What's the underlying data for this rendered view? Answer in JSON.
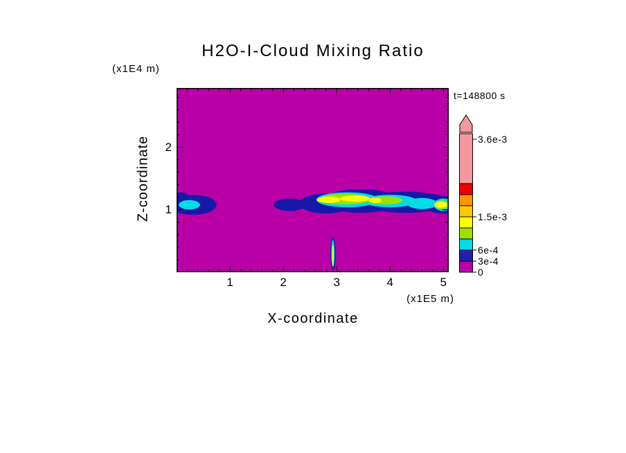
{
  "figure": {
    "background_color": "#ffffff"
  },
  "chart_data": {
    "type": "heatmap",
    "title": "H2O-I-Cloud Mixing Ratio",
    "time_label": "t=148800 s",
    "xlabel": "X-coordinate",
    "x_unit_label": "(x1E5 m)",
    "ylabel": "Z-coordinate",
    "y_unit_label": "(x1E4 m)",
    "xlim": [
      0,
      5.1
    ],
    "ylim": [
      0,
      2.95
    ],
    "x_major_ticks": [
      1,
      2,
      3,
      4,
      5
    ],
    "y_major_ticks": [
      1,
      2
    ],
    "x_minor_step": 0.2,
    "y_minor_step": 0.2,
    "grid": false,
    "field_background_color": "#b800a6",
    "palette": {
      "background": "#b800a6",
      "navy": "#1818a8",
      "cyan": "#00dce6",
      "yellow_green": "#a0e000",
      "yellow": "#ffff00",
      "gold": "#ffc800",
      "orange": "#ff9600",
      "red": "#f00000",
      "pink": "#f2989e"
    },
    "colorbar": {
      "position": "right",
      "arrow_color": "#f2989e",
      "labels": [
        {
          "text": "3.6e-3",
          "value": 0.0036
        },
        {
          "text": "1.5e-3",
          "value": 0.0015
        },
        {
          "text": "6e-4",
          "value": 0.0006
        },
        {
          "text": "3e-4",
          "value": 0.0003
        },
        {
          "text": "0",
          "value": 0
        }
      ],
      "segments_bottom_to_top": [
        {
          "value_range": [
            0,
            0.0003
          ],
          "color": "#b800a6"
        },
        {
          "value_range": [
            0.0003,
            0.0006
          ],
          "color": "#2020b0"
        },
        {
          "value_range": [
            0.0006,
            0.0009
          ],
          "color": "#00dce6"
        },
        {
          "value_range": [
            0.0009,
            0.0012
          ],
          "color": "#a0e000"
        },
        {
          "value_range": [
            0.0012,
            0.0015
          ],
          "color": "#ffff00"
        },
        {
          "value_range": [
            0.0015,
            0.0018
          ],
          "color": "#ffc800"
        },
        {
          "value_range": [
            0.0018,
            0.0021
          ],
          "color": "#ff9600"
        },
        {
          "value_range": [
            0.0021,
            0.0024
          ],
          "color": "#f00000"
        },
        {
          "value_range": [
            0.0024,
            0.00375
          ],
          "color": "#f2989e"
        }
      ]
    },
    "cloud_features": [
      {
        "name": "left-cloud-band",
        "x_range": [
          0,
          0.78
        ],
        "z_range": [
          0.95,
          1.28
        ],
        "max_level_color": "cyan"
      },
      {
        "name": "main-cloud-band",
        "x_range": [
          1.82,
          5.1
        ],
        "z_range": [
          0.9,
          1.36
        ],
        "max_level_color": "yellow"
      },
      {
        "name": "low-thin-plume",
        "x_range": [
          2.88,
          2.98
        ],
        "z_range": [
          0.05,
          0.56
        ],
        "max_level_color": "yellow"
      }
    ],
    "cloud_layers": [
      {
        "color": "#1818a8",
        "ellipses": [
          [
            0.3,
            1.08,
            0.45,
            0.16
          ],
          [
            0.08,
            1.16,
            0.18,
            0.12
          ],
          [
            2.12,
            1.08,
            0.3,
            0.1
          ],
          [
            2.8,
            1.1,
            0.5,
            0.16
          ],
          [
            3.45,
            1.14,
            0.72,
            0.19
          ],
          [
            4.3,
            1.12,
            0.8,
            0.17
          ],
          [
            4.97,
            1.08,
            0.3,
            0.14
          ],
          [
            2.93,
            0.3,
            0.05,
            0.26
          ]
        ]
      },
      {
        "color": "#00dce6",
        "ellipses": [
          [
            0.24,
            1.08,
            0.2,
            0.075
          ],
          [
            3.2,
            1.16,
            0.58,
            0.12
          ],
          [
            4.0,
            1.14,
            0.5,
            0.1
          ],
          [
            4.6,
            1.1,
            0.28,
            0.09
          ],
          [
            5.0,
            1.08,
            0.18,
            0.1
          ],
          [
            2.93,
            0.3,
            0.032,
            0.22
          ]
        ]
      },
      {
        "color": "#a0e000",
        "ellipses": [
          [
            3.15,
            1.17,
            0.48,
            0.085
          ],
          [
            3.9,
            1.15,
            0.33,
            0.065
          ],
          [
            4.97,
            1.08,
            0.13,
            0.07
          ]
        ]
      },
      {
        "color": "#ffff00",
        "ellipses": [
          [
            2.85,
            1.16,
            0.22,
            0.05
          ],
          [
            3.35,
            1.18,
            0.28,
            0.05
          ],
          [
            3.72,
            1.15,
            0.12,
            0.04
          ],
          [
            4.95,
            1.08,
            0.12,
            0.05
          ],
          [
            2.93,
            0.27,
            0.015,
            0.17
          ]
        ]
      }
    ]
  }
}
